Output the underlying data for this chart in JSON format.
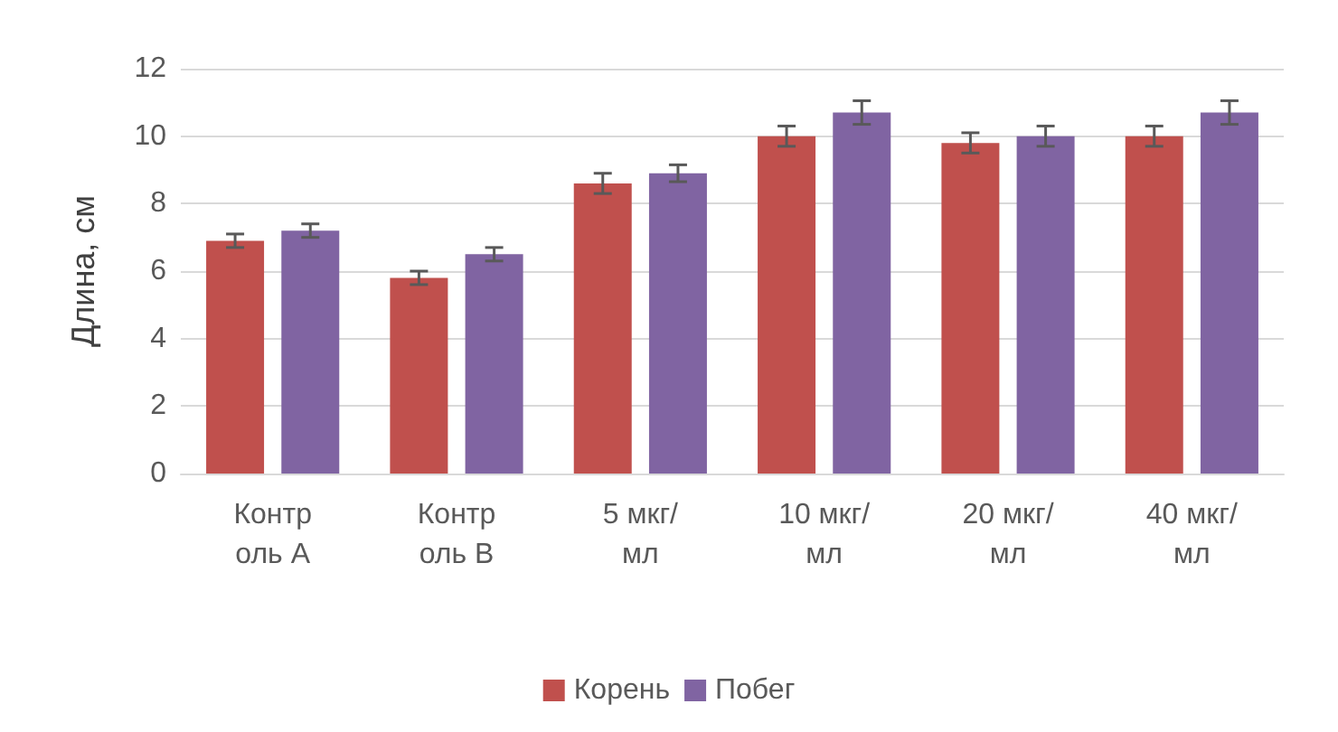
{
  "chart_data": {
    "type": "bar",
    "ylabel": "Длина, см",
    "categories": [
      "Контроль A",
      "Контроль B",
      "5 мкг/мл",
      "10 мкг/мл",
      "20 мкг/мл",
      "40 мкг/мл"
    ],
    "series": [
      {
        "name": "Корень",
        "color": "#c0504d",
        "values": [
          6.9,
          5.8,
          8.6,
          10.0,
          9.8,
          10.0
        ],
        "errors": [
          0.2,
          0.2,
          0.3,
          0.3,
          0.3,
          0.3
        ]
      },
      {
        "name": "Побег",
        "color": "#8064a2",
        "values": [
          7.2,
          6.5,
          8.9,
          10.7,
          10.0,
          10.7
        ],
        "errors": [
          0.2,
          0.2,
          0.25,
          0.35,
          0.3,
          0.35
        ]
      }
    ],
    "ylim": [
      0,
      12
    ],
    "yticks": [
      0,
      2,
      4,
      6,
      8,
      10,
      12
    ],
    "grid": "y",
    "legend": "bottom"
  }
}
